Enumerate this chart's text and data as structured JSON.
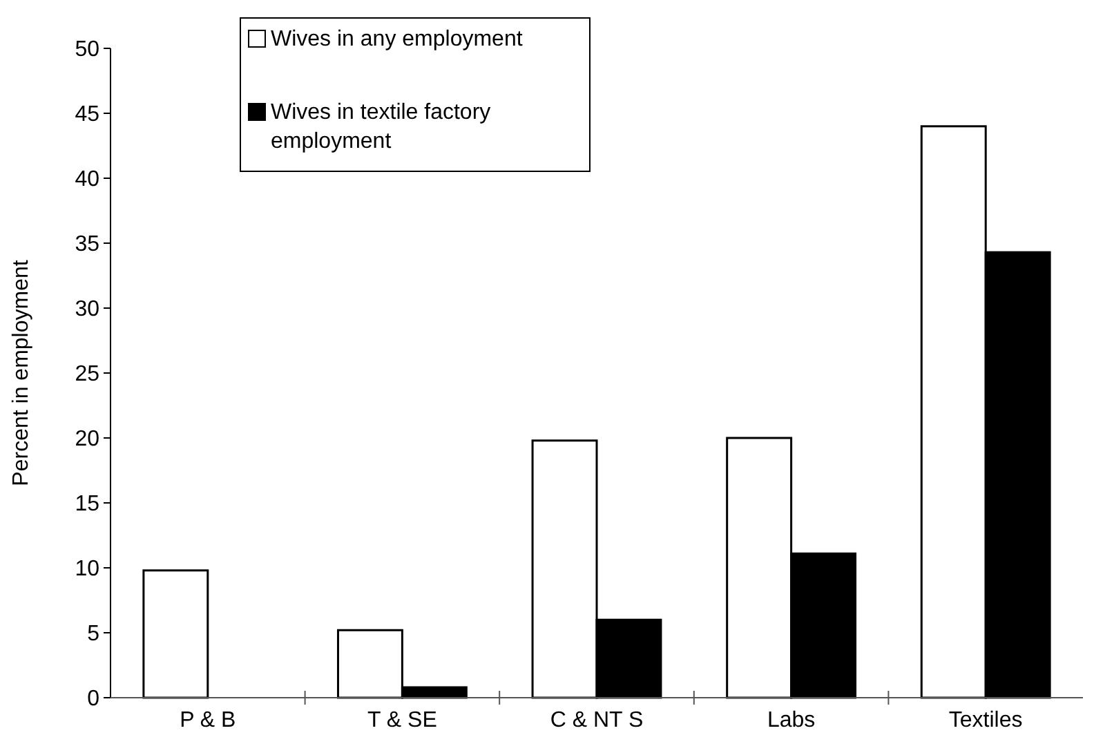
{
  "chart_data": {
    "type": "bar",
    "ylabel": "Percent in employment",
    "categories": [
      "P & B",
      "T & SE",
      "C & NT S",
      "Labs",
      "Textiles"
    ],
    "series": [
      {
        "name": "Wives in any employment",
        "color": "#ffffff",
        "values": [
          9.8,
          5.2,
          19.8,
          20.0,
          44.0
        ]
      },
      {
        "name": "Wives in textile factory employment",
        "color": "#000000",
        "values": [
          null,
          0.8,
          6.0,
          11.1,
          34.3
        ]
      }
    ],
    "ylim": [
      0,
      50
    ],
    "yticks": [
      0,
      5,
      10,
      15,
      20,
      25,
      30,
      35,
      40,
      45,
      50
    ],
    "grid": false,
    "legend": "top"
  }
}
